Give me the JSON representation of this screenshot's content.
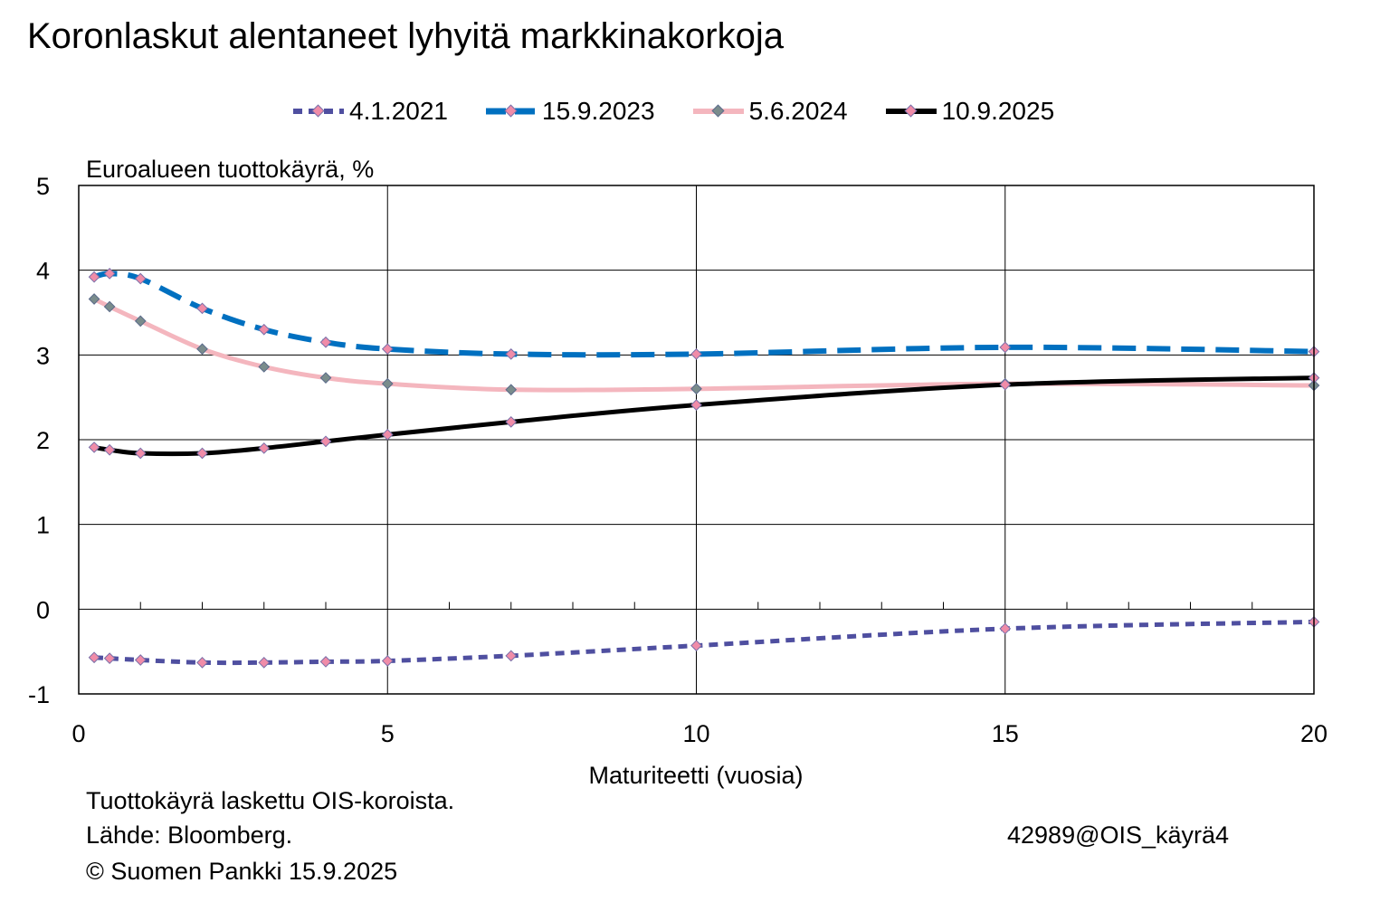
{
  "title": "Koronlaskut alentaneet lyhyitä markkinakorkoja",
  "footer": {
    "note": "Tuottokäyrä laskettu OIS-koroista.",
    "source": "Lähde: Bloomberg.",
    "copyright": "© Suomen Pankki 15.9.2025",
    "code": "42989@OIS_käyrä4"
  },
  "chart_data": {
    "type": "line",
    "title": "Koronlaskut alentaneet lyhyitä markkinakorkoja",
    "subtitle": "Euroalueen tuottokäyrä, %",
    "xlabel": "Maturiteetti (vuosia)",
    "ylabel": "",
    "xlim": [
      0,
      20
    ],
    "ylim": [
      -1,
      5
    ],
    "xticks": [
      0,
      5,
      10,
      15,
      20
    ],
    "yticks": [
      -1,
      0,
      1,
      2,
      3,
      4,
      5
    ],
    "grid": true,
    "legend_position": "top",
    "series": [
      {
        "name": "4.1.2021",
        "color": "#4F4FA0",
        "style": "short-dash",
        "x": [
          0.25,
          0.5,
          1,
          2,
          3,
          4,
          5,
          7,
          10,
          15,
          20
        ],
        "y": [
          -0.57,
          -0.58,
          -0.6,
          -0.63,
          -0.63,
          -0.62,
          -0.61,
          -0.55,
          -0.43,
          -0.23,
          -0.15
        ]
      },
      {
        "name": "15.9.2023",
        "color": "#0070C0",
        "style": "long-dash",
        "x": [
          0.25,
          0.5,
          1,
          2,
          3,
          4,
          5,
          7,
          10,
          15,
          20
        ],
        "y": [
          3.92,
          3.96,
          3.9,
          3.55,
          3.3,
          3.15,
          3.07,
          3.01,
          3.01,
          3.09,
          3.04
        ]
      },
      {
        "name": "5.6.2024",
        "color": "#F4B6BE",
        "style": "solid",
        "x": [
          0.25,
          0.5,
          1,
          2,
          3,
          4,
          5,
          7,
          10,
          15,
          20
        ],
        "y": [
          3.66,
          3.57,
          3.4,
          3.07,
          2.86,
          2.73,
          2.66,
          2.59,
          2.6,
          2.66,
          2.64
        ]
      },
      {
        "name": "10.9.2025",
        "color": "#000000",
        "style": "solid",
        "x": [
          0.25,
          0.5,
          1,
          2,
          3,
          4,
          5,
          7,
          10,
          15,
          20
        ],
        "y": [
          1.91,
          1.88,
          1.84,
          1.84,
          1.9,
          1.98,
          2.06,
          2.21,
          2.41,
          2.65,
          2.73
        ]
      }
    ]
  }
}
